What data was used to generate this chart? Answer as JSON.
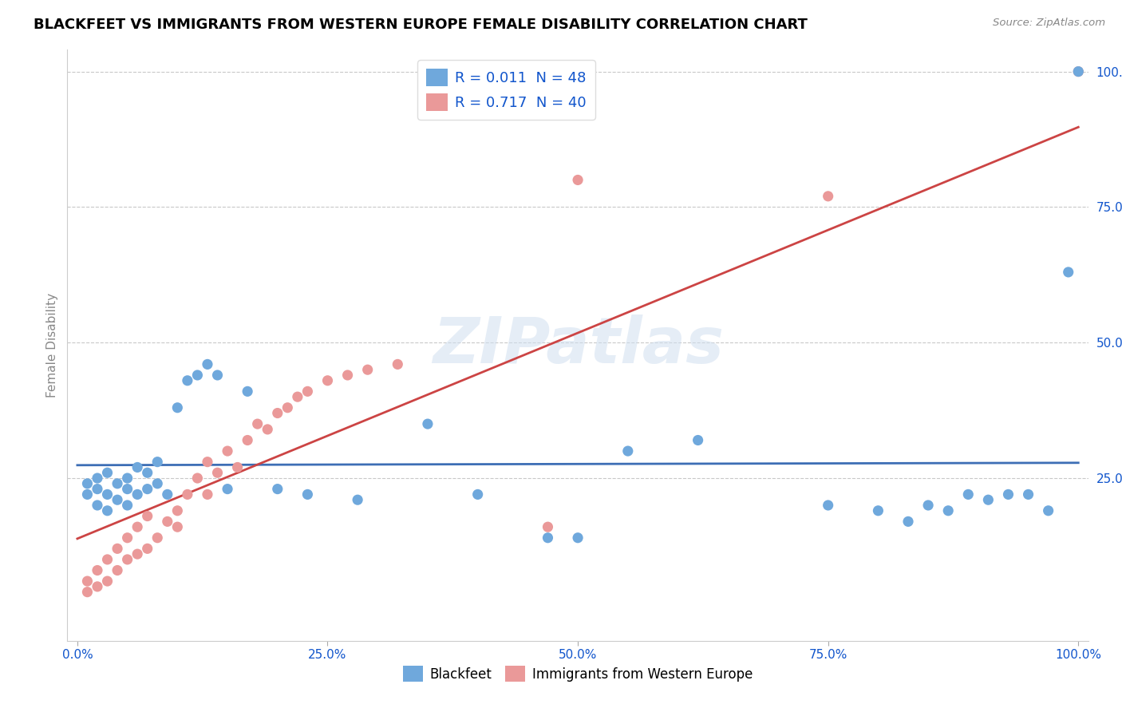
{
  "title": "BLACKFEET VS IMMIGRANTS FROM WESTERN EUROPE FEMALE DISABILITY CORRELATION CHART",
  "source_text": "Source: ZipAtlas.com",
  "ylabel": "Female Disability",
  "watermark": "ZIPatlas",
  "legend_labels": [
    "Blackfeet",
    "Immigrants from Western Europe"
  ],
  "r_blackfeet": 0.011,
  "n_blackfeet": 48,
  "r_western_europe": 0.717,
  "n_western_europe": 40,
  "blackfeet_color": "#6fa8dc",
  "western_europe_color": "#ea9999",
  "trendline_blackfeet_color": "#3d6eb5",
  "trendline_western_europe_color": "#cc4444",
  "background_color": "#ffffff",
  "grid_color": "#bbbbbb",
  "title_color": "#000000",
  "legend_text_color": "#1155cc",
  "axis_label_color": "#888888",
  "tick_label_color": "#1155cc",
  "xtick_positions": [
    0.0,
    0.25,
    0.5,
    0.75,
    1.0
  ],
  "xtick_labels": [
    "0.0%",
    "25.0%",
    "50.0%",
    "75.0%",
    "100.0%"
  ],
  "ytick_positions": [
    0.25,
    0.5,
    0.75,
    1.0
  ],
  "ytick_labels": [
    "25.0%",
    "50.0%",
    "75.0%",
    "100.0%"
  ],
  "blackfeet_x": [
    0.01,
    0.01,
    0.02,
    0.02,
    0.02,
    0.03,
    0.03,
    0.03,
    0.04,
    0.04,
    0.05,
    0.05,
    0.05,
    0.06,
    0.06,
    0.07,
    0.07,
    0.08,
    0.08,
    0.09,
    0.1,
    0.11,
    0.12,
    0.13,
    0.14,
    0.15,
    0.17,
    0.2,
    0.23,
    0.28,
    0.35,
    0.4,
    0.47,
    0.5,
    0.55,
    0.62,
    0.75,
    0.8,
    0.83,
    0.85,
    0.87,
    0.89,
    0.91,
    0.93,
    0.95,
    0.97,
    0.99,
    1.0
  ],
  "blackfeet_y": [
    0.22,
    0.24,
    0.2,
    0.23,
    0.25,
    0.19,
    0.22,
    0.26,
    0.21,
    0.24,
    0.2,
    0.23,
    0.25,
    0.22,
    0.27,
    0.23,
    0.26,
    0.24,
    0.28,
    0.22,
    0.38,
    0.43,
    0.44,
    0.46,
    0.44,
    0.23,
    0.41,
    0.23,
    0.22,
    0.21,
    0.35,
    0.22,
    0.14,
    0.14,
    0.3,
    0.32,
    0.2,
    0.19,
    0.17,
    0.2,
    0.19,
    0.22,
    0.21,
    0.22,
    0.22,
    0.19,
    0.63,
    1.0
  ],
  "western_europe_x": [
    0.01,
    0.01,
    0.02,
    0.02,
    0.03,
    0.03,
    0.04,
    0.04,
    0.05,
    0.05,
    0.06,
    0.06,
    0.07,
    0.07,
    0.08,
    0.09,
    0.1,
    0.1,
    0.11,
    0.12,
    0.13,
    0.13,
    0.14,
    0.15,
    0.16,
    0.17,
    0.18,
    0.19,
    0.2,
    0.21,
    0.22,
    0.23,
    0.25,
    0.27,
    0.29,
    0.32,
    0.47,
    0.5,
    0.75,
    1.0
  ],
  "western_europe_y": [
    0.04,
    0.06,
    0.05,
    0.08,
    0.06,
    0.1,
    0.08,
    0.12,
    0.1,
    0.14,
    0.11,
    0.16,
    0.12,
    0.18,
    0.14,
    0.17,
    0.16,
    0.19,
    0.22,
    0.25,
    0.22,
    0.28,
    0.26,
    0.3,
    0.27,
    0.32,
    0.35,
    0.34,
    0.37,
    0.38,
    0.4,
    0.41,
    0.43,
    0.44,
    0.45,
    0.46,
    0.16,
    0.8,
    0.77,
    1.0
  ],
  "figsize": [
    14.06,
    8.92
  ],
  "dpi": 100
}
